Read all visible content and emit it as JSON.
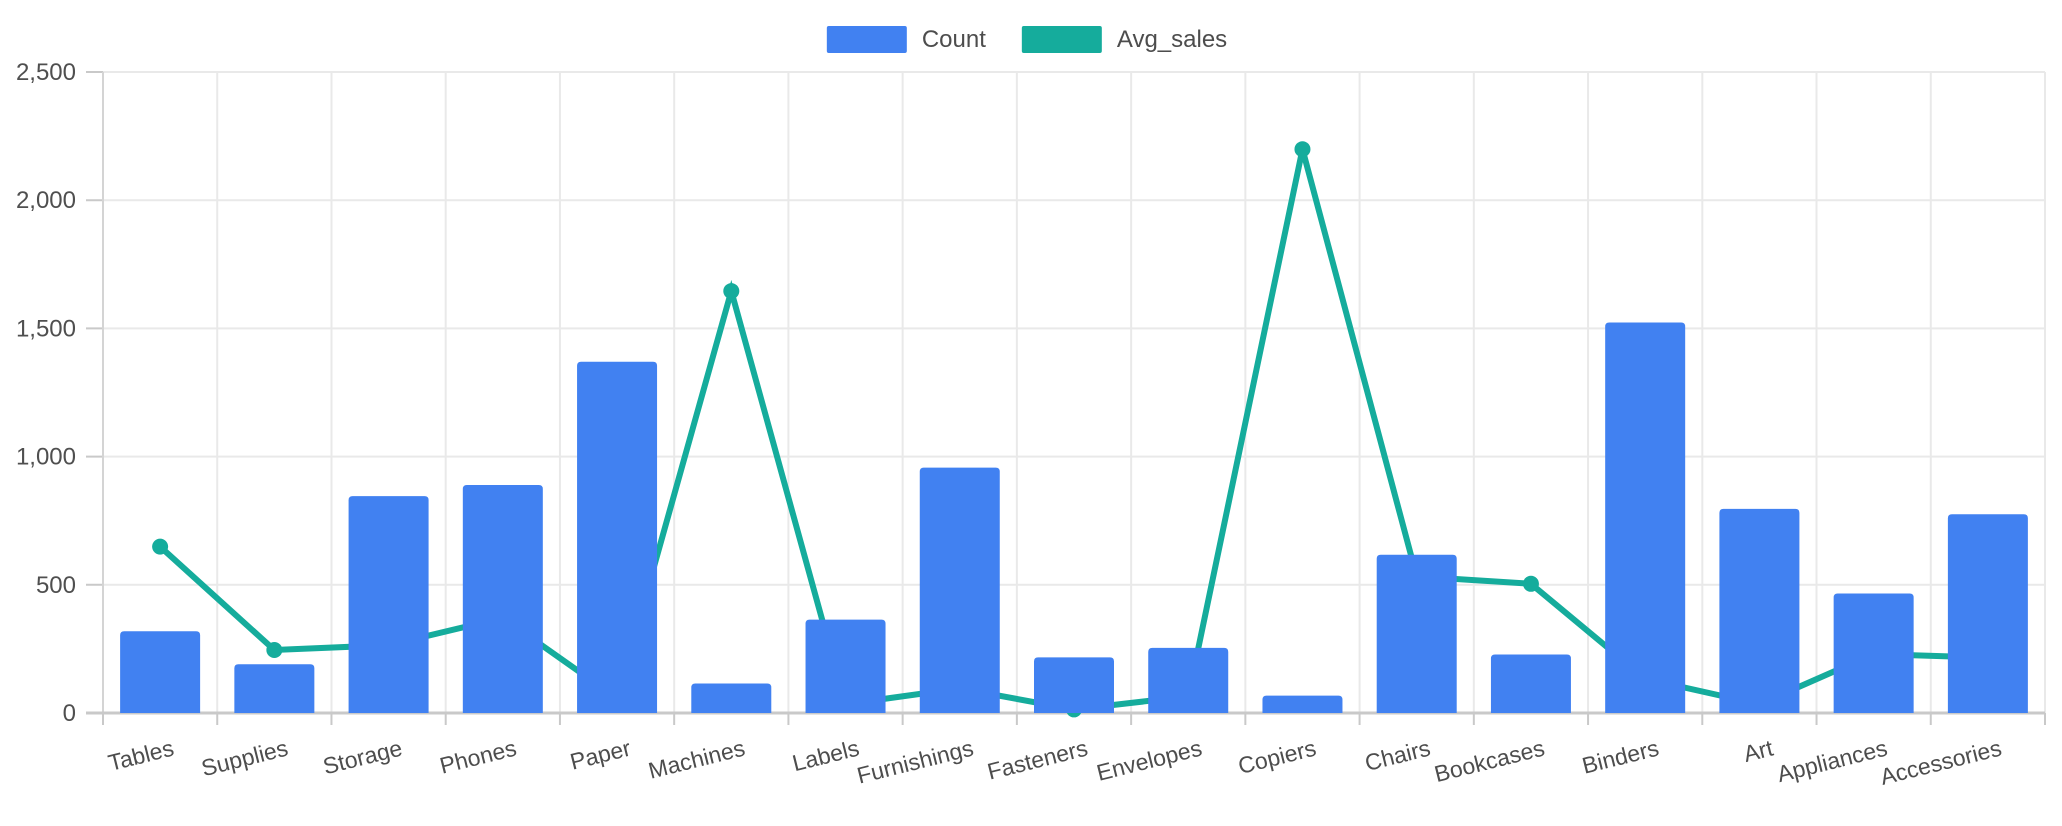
{
  "chart_data": {
    "type": "combo",
    "categories": [
      "Tables",
      "Supplies",
      "Storage",
      "Phones",
      "Paper",
      "Machines",
      "Labels",
      "Furnishings",
      "Fasteners",
      "Envelopes",
      "Copiers",
      "Chairs",
      "Bookcases",
      "Binders",
      "Art",
      "Appliances",
      "Accessories"
    ],
    "series": [
      {
        "name": "Count",
        "type": "bar",
        "color": "#4181F1",
        "values": [
          319,
          190,
          846,
          889,
          1370,
          115,
          364,
          957,
          217,
          254,
          68,
          617,
          228,
          1523,
          796,
          466,
          775
        ]
      },
      {
        "name": "Avg_sales",
        "type": "line",
        "color": "#15AC9C",
        "marker": "circle",
        "values": [
          648.8,
          245.7,
          264.6,
          371.2,
          57.3,
          1645.6,
          34.3,
          95.8,
          13.9,
          64.9,
          2198.9,
          532.3,
          503.9,
          133.6,
          34.1,
          230.1,
          216.0
        ]
      }
    ],
    "legend": [
      "Count",
      "Avg_sales"
    ],
    "legend_position": "top-center",
    "title": "",
    "xlabel": "",
    "ylabel": "",
    "ylim": [
      0,
      2500
    ],
    "yticks": {
      "values": [
        0,
        500,
        1000,
        1500,
        2000,
        2500
      ],
      "labels": [
        "0",
        "500",
        "1,000",
        "1,500",
        "2,000",
        "2,500"
      ]
    },
    "grid": true,
    "x_label_rotation_deg": -14,
    "line_behind_bars": true
  },
  "legend": {
    "items": [
      {
        "label": "Count",
        "color": "#4181F1"
      },
      {
        "label": "Avg_sales",
        "color": "#15AC9C"
      }
    ]
  },
  "colors": {
    "background": "#ffffff",
    "bar": "#4181F1",
    "line": "#15AC9C",
    "grid": "#e9e9e9",
    "axis": "#c9c9c9",
    "tick_text": "#4f4f4f",
    "label_text": "#4d4d4d"
  }
}
